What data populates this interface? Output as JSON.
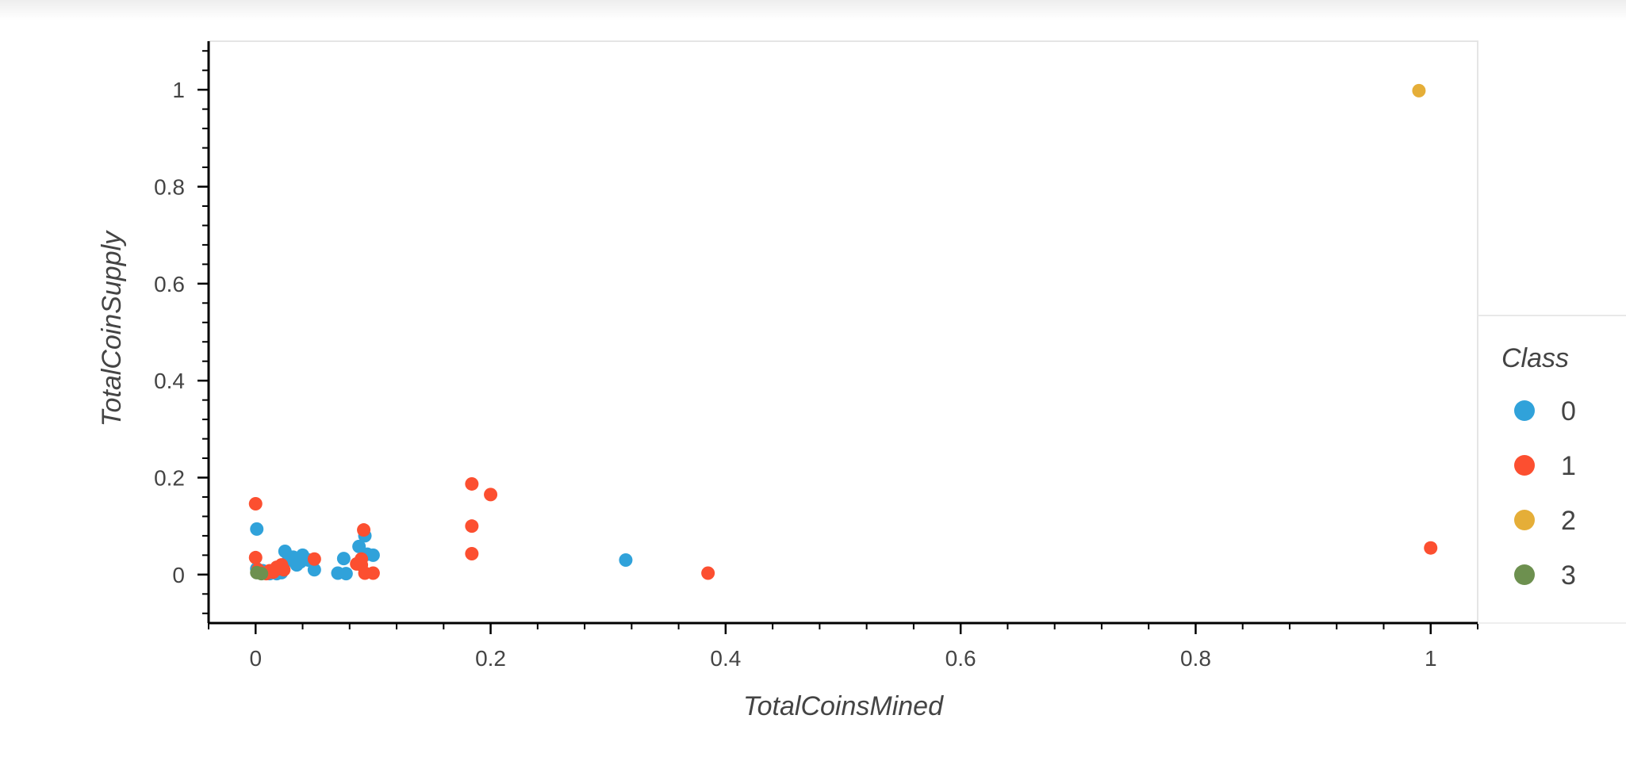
{
  "chart_data": {
    "type": "scatter",
    "xlabel": "TotalCoinsMined",
    "ylabel": "TotalCoinSupply",
    "xlim": [
      -0.04,
      1.04
    ],
    "ylim": [
      -0.1,
      1.1
    ],
    "x_ticks": [
      "0",
      "0.2",
      "0.4",
      "0.6",
      "0.8",
      "1"
    ],
    "y_ticks": [
      "0",
      "0.2",
      "0.4",
      "0.6",
      "0.8",
      "1"
    ],
    "x_tick_values": [
      0,
      0.2,
      0.4,
      0.6,
      0.8,
      1
    ],
    "y_tick_values": [
      0,
      0.2,
      0.4,
      0.6,
      0.8,
      1
    ],
    "grid": false,
    "legend": {
      "title": "Class",
      "placement": "right"
    },
    "series": [
      {
        "name": "0",
        "color": "#30a2da",
        "points": [
          [
            0.001,
            0.094
          ],
          [
            0.001,
            0.012
          ],
          [
            0.003,
            0.004
          ],
          [
            0.006,
            0.008
          ],
          [
            0.012,
            0.002
          ],
          [
            0.018,
            0.002
          ],
          [
            0.022,
            0.004
          ],
          [
            0.025,
            0.048
          ],
          [
            0.028,
            0.03
          ],
          [
            0.032,
            0.036
          ],
          [
            0.035,
            0.02
          ],
          [
            0.038,
            0.026
          ],
          [
            0.04,
            0.04
          ],
          [
            0.045,
            0.03
          ],
          [
            0.05,
            0.01
          ],
          [
            0.07,
            0.003
          ],
          [
            0.075,
            0.033
          ],
          [
            0.077,
            0.002
          ],
          [
            0.088,
            0.058
          ],
          [
            0.093,
            0.08
          ],
          [
            0.095,
            0.042
          ],
          [
            0.1,
            0.04
          ],
          [
            0.315,
            0.03
          ]
        ]
      },
      {
        "name": "1",
        "color": "#fc4f30",
        "points": [
          [
            0.0,
            0.146
          ],
          [
            0.0,
            0.035
          ],
          [
            0.002,
            0.01
          ],
          [
            0.005,
            0.004
          ],
          [
            0.009,
            0.002
          ],
          [
            0.012,
            0.008
          ],
          [
            0.015,
            0.005
          ],
          [
            0.018,
            0.015
          ],
          [
            0.02,
            0.012
          ],
          [
            0.022,
            0.02
          ],
          [
            0.024,
            0.01
          ],
          [
            0.05,
            0.032
          ],
          [
            0.086,
            0.022
          ],
          [
            0.09,
            0.02
          ],
          [
            0.092,
            0.092
          ],
          [
            0.09,
            0.032
          ],
          [
            0.093,
            0.003
          ],
          [
            0.1,
            0.003
          ],
          [
            0.184,
            0.187
          ],
          [
            0.184,
            0.1
          ],
          [
            0.184,
            0.043
          ],
          [
            0.2,
            0.165
          ],
          [
            0.385,
            0.003
          ],
          [
            1.0,
            0.055
          ]
        ]
      },
      {
        "name": "2",
        "color": "#e5ae38",
        "points": [
          [
            0.99,
            0.998
          ]
        ]
      },
      {
        "name": "3",
        "color": "#6d904f",
        "points": [
          [
            0.001,
            0.004
          ],
          [
            0.005,
            0.002
          ]
        ]
      }
    ]
  }
}
